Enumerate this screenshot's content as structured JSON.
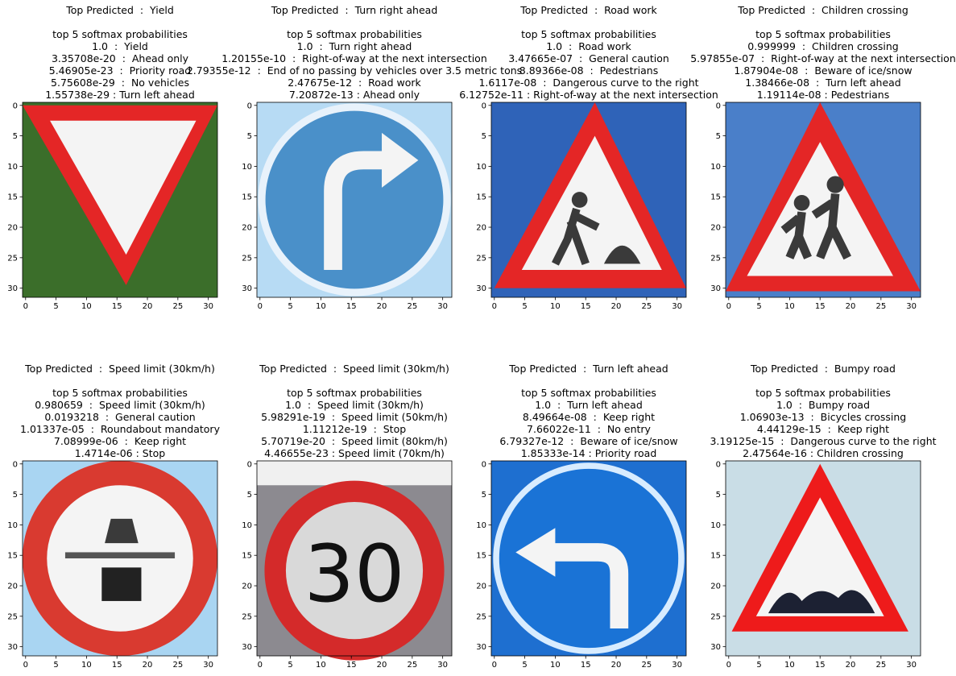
{
  "figure": {
    "panels": [
      {
        "top_predicted": "Top Predicted  :  Yield",
        "softmax_header": "top 5 softmax probabilities",
        "predictions": [
          "1.0  :  Yield",
          "3.35708e-20  :  Ahead only",
          "5.46905e-23  :  Priority road",
          "5.75608e-29  :  No vehicles",
          "1.55738e-29 : Turn left ahead"
        ],
        "image": {
          "sign": "yield-sign-icon",
          "background": "#3b6e2a"
        }
      },
      {
        "top_predicted": "Top Predicted  :  Turn right ahead",
        "softmax_header": "top 5 softmax probabilities",
        "predictions": [
          "1.0  :  Turn right ahead",
          "1.20155e-10  :  Right-of-way at the next intersection",
          "2.79355e-12  :  End of no passing by vehicles over 3.5 metric tons",
          "2.47675e-12  :  Road work",
          "7.20872e-13 : Ahead only"
        ],
        "image": {
          "sign": "turn-right-ahead-sign-icon",
          "background": "#b7dbf4"
        }
      },
      {
        "top_predicted": "Top Predicted  :  Road work",
        "softmax_header": "top 5 softmax probabilities",
        "predictions": [
          "1.0  :  Road work",
          "3.47665e-07  :  General caution",
          "8.89366e-08  :  Pedestrians",
          "1.6117e-08  :  Dangerous curve to the right",
          "6.12752e-11 : Right-of-way at the next intersection"
        ],
        "image": {
          "sign": "road-work-sign-icon",
          "background": "#2f63b8"
        }
      },
      {
        "top_predicted": "Top Predicted  :  Children crossing",
        "softmax_header": "top 5 softmax probabilities",
        "predictions": [
          "0.999999  :  Children crossing",
          "5.97855e-07  :  Right-of-way at the next intersection",
          "1.87904e-08  :  Beware of ice/snow",
          "1.38466e-08  :  Turn left ahead",
          "1.19114e-08 : Pedestrians"
        ],
        "image": {
          "sign": "children-crossing-sign-icon",
          "background": "#4a7fc9"
        }
      },
      {
        "top_predicted": "Top Predicted  :  Speed limit (30km/h)",
        "softmax_header": "top 5 softmax probabilities",
        "predictions": [
          "0.980659  :  Speed limit (30km/h)",
          "0.0193218  :  General caution",
          "1.01337e-05  :  Roundabout mandatory",
          "7.08999e-06  :  Keep right",
          "1.4714e-06 : Stop"
        ],
        "image": {
          "sign": "no-passing-trucks-sign-icon",
          "background": "#a9d5f2"
        }
      },
      {
        "top_predicted": "Top Predicted  :  Speed limit (30km/h)",
        "softmax_header": "top 5 softmax probabilities",
        "predictions": [
          "1.0  :  Speed limit (30km/h)",
          "5.98291e-19  :  Speed limit (50km/h)",
          "1.11212e-19  :  Stop",
          "5.70719e-20  :  Speed limit (80km/h)",
          "4.46655e-23 : Speed limit (70km/h)"
        ],
        "image": {
          "sign": "speed-limit-30-sign-icon",
          "background": "#8c8a90",
          "sign_text": "30"
        }
      },
      {
        "top_predicted": "Top Predicted  :  Turn left ahead",
        "softmax_header": "top 5 softmax probabilities",
        "predictions": [
          "1.0  :  Turn left ahead",
          "8.49664e-08  :  Keep right",
          "7.66022e-11  :  No entry",
          "6.79327e-12  :  Beware of ice/snow",
          "1.85333e-14 : Priority road"
        ],
        "image": {
          "sign": "turn-left-ahead-sign-icon",
          "background": "#1e6fd0"
        }
      },
      {
        "top_predicted": "Top Predicted  :  Bumpy road",
        "softmax_header": "top 5 softmax probabilities",
        "predictions": [
          "1.0  :  Bumpy road",
          "1.06903e-13  :  Bicycles crossing",
          "4.44129e-15  :  Keep right",
          "3.19125e-15  :  Dangerous curve to the right",
          "2.47564e-16 : Children crossing"
        ],
        "image": {
          "sign": "bumpy-road-sign-icon",
          "background": "#c9dde6"
        }
      }
    ]
  },
  "chart_data": {
    "type": "image-grid",
    "xlim": [
      -0.5,
      31.5
    ],
    "ylim": [
      31.5,
      -0.5
    ],
    "xticks": [
      0,
      5,
      10,
      15,
      20,
      25,
      30
    ],
    "yticks": [
      0,
      5,
      10,
      15,
      20,
      25,
      30
    ],
    "colors": {
      "red": "#e42626",
      "white": "#f4f4f4",
      "dark": "#3a3a3a"
    }
  }
}
